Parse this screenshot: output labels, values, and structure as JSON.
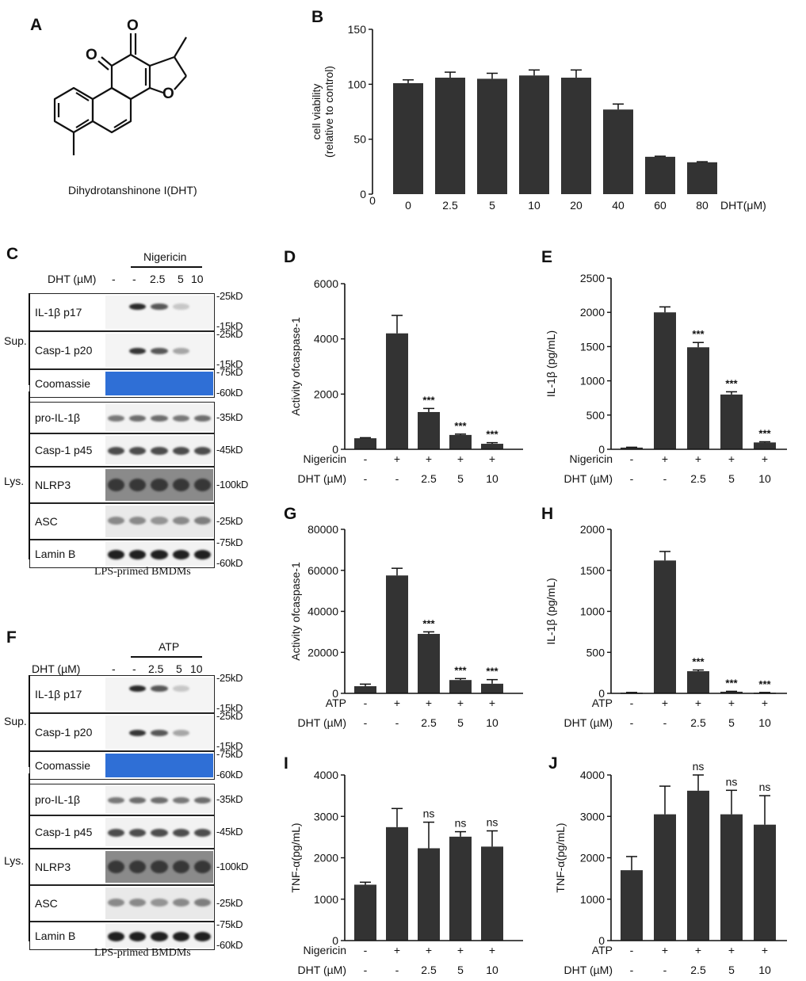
{
  "panels": {
    "A": "A",
    "B": "B",
    "C": "C",
    "D": "D",
    "E": "E",
    "F": "F",
    "G": "G",
    "H": "H",
    "I": "I",
    "J": "J"
  },
  "structure": {
    "compound_name": "Dihydrotanshinone I(DHT)",
    "atom_o1": "O",
    "atom_o2": "O",
    "atom_o3": "O"
  },
  "blot_c": {
    "treatment": "Nigericin",
    "dht_label": "DHT (µM)",
    "lanes": [
      "-",
      "-",
      "2.5",
      "5",
      "10"
    ],
    "group_sup": "Sup.",
    "group_lys": "Lys.",
    "rows": [
      {
        "label": "IL-1β p17",
        "markers": [
          "-25kD",
          "-15kD"
        ]
      },
      {
        "label": "Casp-1 p20",
        "markers": [
          "-25kD",
          "-15kD"
        ]
      },
      {
        "label": "Coomassie",
        "markers": [
          "-75kD",
          "-60kD"
        ]
      },
      {
        "label": "pro-IL-1β",
        "markers": [
          "-35kD"
        ]
      },
      {
        "label": "Casp-1 p45",
        "markers": [
          "-45kD"
        ]
      },
      {
        "label": "NLRP3",
        "markers": [
          "-100kD"
        ]
      },
      {
        "label": "ASC",
        "markers": [
          "-25kD"
        ]
      },
      {
        "label": "Lamin B",
        "markers": [
          "-75kD",
          "-60kD"
        ]
      }
    ],
    "caption": "LPS-primed BMDMs"
  },
  "blot_f": {
    "treatment": "ATP",
    "dht_label": "DHT (µM)",
    "lanes": [
      "-",
      "-",
      "2.5",
      "5",
      "10"
    ],
    "group_sup": "Sup.",
    "group_lys": "Lys.",
    "rows": [
      {
        "label": "IL-1β p17",
        "markers": [
          "-25kD",
          "-15kD"
        ]
      },
      {
        "label": "Casp-1 p20",
        "markers": [
          "-25kD",
          "-15kD"
        ]
      },
      {
        "label": "Coomassie",
        "markers": [
          "-75kD",
          "-60kD"
        ]
      },
      {
        "label": "pro-IL-1β",
        "markers": [
          "-35kD"
        ]
      },
      {
        "label": "Casp-1 p45",
        "markers": [
          "-45kD"
        ]
      },
      {
        "label": "NLRP3",
        "markers": [
          "-100kD"
        ]
      },
      {
        "label": "ASC",
        "markers": [
          "-25kD"
        ]
      },
      {
        "label": "Lamin B",
        "markers": [
          "-75kD",
          "-60kD"
        ]
      }
    ],
    "caption": "LPS-primed BMDMs"
  },
  "chart_data": [
    {
      "id": "B",
      "type": "bar",
      "ylabel": "cell viability\n(relative to control)",
      "xlabel": "DHT(μM)",
      "categories": [
        "0",
        "2.5",
        "5",
        "10",
        "20",
        "40",
        "60",
        "80"
      ],
      "values": [
        101,
        106,
        105,
        108,
        106,
        77,
        34,
        29
      ],
      "errors": [
        3,
        5,
        5,
        5,
        7,
        5,
        0.5,
        0.5
      ],
      "ylim": [
        0,
        150
      ],
      "yticks": [
        0,
        50,
        100,
        150
      ],
      "annotations": []
    },
    {
      "id": "D",
      "type": "bar",
      "ylabel": "Activity ofcaspase-1",
      "rows": [
        {
          "label": "Nigericin",
          "values": [
            "-",
            "+",
            "+",
            "+",
            "+"
          ]
        },
        {
          "label": "DHT (µM)",
          "values": [
            "-",
            "-",
            "2.5",
            "5",
            "10"
          ]
        }
      ],
      "values": [
        400,
        4200,
        1350,
        520,
        200
      ],
      "errors": [
        20,
        650,
        130,
        30,
        40
      ],
      "ylim": [
        0,
        6000
      ],
      "yticks": [
        0,
        2000,
        4000,
        6000
      ],
      "annotations": [
        "",
        "",
        "***",
        "***",
        "***"
      ]
    },
    {
      "id": "E",
      "type": "bar",
      "ylabel": "IL-1β (pg/mL)",
      "rows": [
        {
          "label": "Nigericin",
          "values": [
            "-",
            "+",
            "+",
            "+",
            "+"
          ]
        },
        {
          "label": "DHT (µM)",
          "values": [
            "-",
            "-",
            "2.5",
            "5",
            "10"
          ]
        }
      ],
      "values": [
        25,
        2000,
        1490,
        800,
        100
      ],
      "errors": [
        5,
        80,
        70,
        40,
        10
      ],
      "ylim": [
        0,
        2500
      ],
      "yticks": [
        0,
        500,
        1000,
        1500,
        2000,
        2500
      ],
      "annotations": [
        "",
        "",
        "***",
        "***",
        "***"
      ]
    },
    {
      "id": "G",
      "type": "bar",
      "ylabel": "Activity ofcaspase-1",
      "rows": [
        {
          "label": "ATP",
          "values": [
            "-",
            "+",
            "+",
            "+",
            "+"
          ]
        },
        {
          "label": "DHT (µM)",
          "values": [
            "-",
            "-",
            "2.5",
            "5",
            "10"
          ]
        }
      ],
      "values": [
        3500,
        57500,
        29000,
        6500,
        4700
      ],
      "errors": [
        1000,
        3500,
        1000,
        700,
        2000
      ],
      "ylim": [
        0,
        80000
      ],
      "yticks": [
        0,
        20000,
        40000,
        60000,
        80000
      ],
      "annotations": [
        "",
        "",
        "***",
        "***",
        "***"
      ]
    },
    {
      "id": "H",
      "type": "bar",
      "ylabel": "IL-1β (pg/mL)",
      "rows": [
        {
          "label": "ATP",
          "values": [
            "-",
            "+",
            "+",
            "+",
            "+"
          ]
        },
        {
          "label": "DHT (µM)",
          "values": [
            "-",
            "-",
            "2.5",
            "5",
            "10"
          ]
        }
      ],
      "values": [
        8,
        1620,
        270,
        20,
        8
      ],
      "errors": [
        3,
        110,
        15,
        5,
        3
      ],
      "ylim": [
        0,
        2000
      ],
      "yticks": [
        0,
        500,
        1000,
        1500,
        2000
      ],
      "annotations": [
        "",
        "",
        "***",
        "***",
        "***"
      ]
    },
    {
      "id": "I",
      "type": "bar",
      "ylabel": "TNF-α(pg/mL)",
      "rows": [
        {
          "label": "Nigericin",
          "values": [
            "-",
            "+",
            "+",
            "+",
            "+"
          ]
        },
        {
          "label": "DHT (µM)",
          "values": [
            "-",
            "-",
            "2.5",
            "5",
            "10"
          ]
        }
      ],
      "values": [
        1350,
        2740,
        2230,
        2510,
        2270
      ],
      "errors": [
        60,
        450,
        630,
        120,
        380
      ],
      "ylim": [
        0,
        4000
      ],
      "yticks": [
        0,
        1000,
        2000,
        3000,
        4000
      ],
      "annotations": [
        "",
        "",
        "ns",
        "ns",
        "ns"
      ]
    },
    {
      "id": "J",
      "type": "bar",
      "ylabel": "TNF-α(pg/mL)",
      "rows": [
        {
          "label": "ATP",
          "values": [
            "-",
            "+",
            "+",
            "+",
            "+"
          ]
        },
        {
          "label": "DHT (µM)",
          "values": [
            "-",
            "-",
            "2.5",
            "5",
            "10"
          ]
        }
      ],
      "values": [
        1700,
        3050,
        3620,
        3050,
        2800
      ],
      "errors": [
        330,
        680,
        380,
        580,
        700
      ],
      "ylim": [
        0,
        4000
      ],
      "yticks": [
        0,
        1000,
        2000,
        3000,
        4000
      ],
      "annotations": [
        "",
        "",
        "ns",
        "ns",
        "ns"
      ]
    }
  ]
}
